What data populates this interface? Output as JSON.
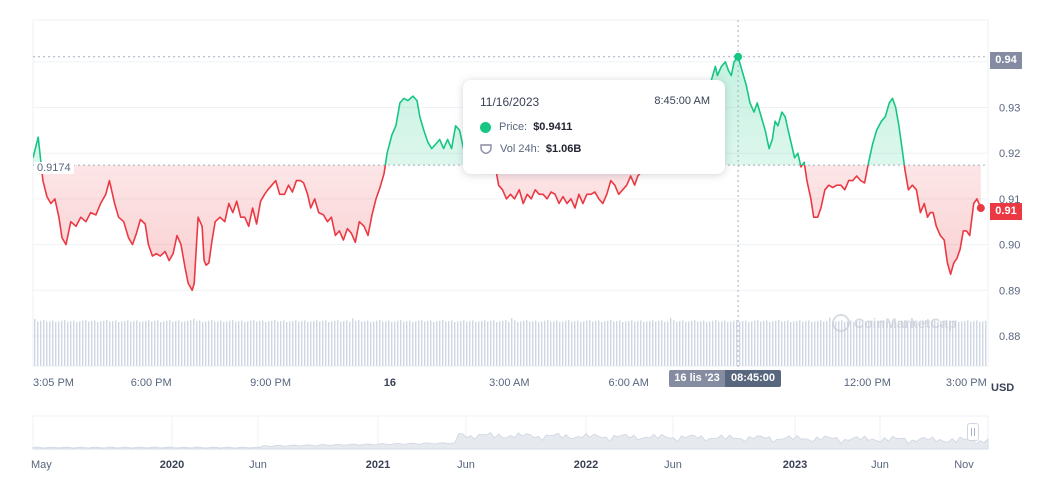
{
  "tooltip": {
    "date": "11/16/2023",
    "time": "8:45:00 AM",
    "price_label": "Price:",
    "price_value": "$0.9411",
    "volume_label": "Vol 24h:",
    "volume_value": "$1.06B"
  },
  "crosshair": {
    "price_tag": "0.94",
    "date_tag": "16 lis '23",
    "time_tag": "08:45:00"
  },
  "last_price_tag": "0.91",
  "open_price_label": "0.9174",
  "currency_label": "USD",
  "watermark_text": "CoinMarketCap",
  "colors": {
    "up": "#16c784",
    "down": "#ea3943",
    "grid": "#eff2f5",
    "volume": "#cfd6e4",
    "tag_gray": "#858ca2",
    "tag_dark": "#58667e"
  },
  "chart_data": {
    "type": "line",
    "baseline": 0.9174,
    "ylim": [
      0.875,
      0.945
    ],
    "yticks": [
      "0.88",
      "0.89",
      "0.90",
      "0.91",
      "0.92",
      "0.93",
      "0.94"
    ],
    "xticks": [
      {
        "label": "3:05 PM",
        "t": 0.05,
        "bold": false
      },
      {
        "label": "6:00 PM",
        "t": 2.97,
        "bold": false
      },
      {
        "label": "9:00 PM",
        "t": 5.97,
        "bold": false
      },
      {
        "label": "16",
        "t": 8.97,
        "bold": true
      },
      {
        "label": "3:00 AM",
        "t": 11.97,
        "bold": false
      },
      {
        "label": "6:00 AM",
        "t": 14.97,
        "bold": false
      },
      {
        "label": "12:00 PM",
        "t": 20.97,
        "bold": false
      },
      {
        "label": "3:00 PM",
        "t": 23.97,
        "bold": false
      }
    ],
    "hover": {
      "t": 17.72,
      "price": 0.9411
    },
    "price": [
      [
        0.0,
        0.919
      ],
      [
        0.13,
        0.9235
      ],
      [
        0.25,
        0.914
      ],
      [
        0.35,
        0.9105
      ],
      [
        0.45,
        0.909
      ],
      [
        0.55,
        0.91
      ],
      [
        0.65,
        0.906
      ],
      [
        0.73,
        0.9015
      ],
      [
        0.83,
        0.9
      ],
      [
        0.95,
        0.905
      ],
      [
        1.08,
        0.904
      ],
      [
        1.2,
        0.906
      ],
      [
        1.33,
        0.905
      ],
      [
        1.45,
        0.907
      ],
      [
        1.58,
        0.9065
      ],
      [
        1.7,
        0.909
      ],
      [
        1.83,
        0.911
      ],
      [
        1.92,
        0.914
      ],
      [
        2.05,
        0.909
      ],
      [
        2.15,
        0.906
      ],
      [
        2.28,
        0.905
      ],
      [
        2.4,
        0.9015
      ],
      [
        2.5,
        0.9
      ],
      [
        2.6,
        0.9025
      ],
      [
        2.7,
        0.9055
      ],
      [
        2.82,
        0.9045
      ],
      [
        2.9,
        0.9
      ],
      [
        3.0,
        0.8975
      ],
      [
        3.1,
        0.898
      ],
      [
        3.2,
        0.8975
      ],
      [
        3.32,
        0.8985
      ],
      [
        3.42,
        0.8965
      ],
      [
        3.52,
        0.898
      ],
      [
        3.62,
        0.902
      ],
      [
        3.72,
        0.9
      ],
      [
        3.82,
        0.895
      ],
      [
        3.9,
        0.8915
      ],
      [
        4.0,
        0.89
      ],
      [
        4.05,
        0.8915
      ],
      [
        4.15,
        0.906
      ],
      [
        4.25,
        0.904
      ],
      [
        4.3,
        0.8965
      ],
      [
        4.35,
        0.8955
      ],
      [
        4.42,
        0.896
      ],
      [
        4.5,
        0.901
      ],
      [
        4.58,
        0.905
      ],
      [
        4.7,
        0.906
      ],
      [
        4.82,
        0.905
      ],
      [
        4.92,
        0.909
      ],
      [
        5.02,
        0.907
      ],
      [
        5.12,
        0.9095
      ],
      [
        5.22,
        0.906
      ],
      [
        5.32,
        0.906
      ],
      [
        5.42,
        0.904
      ],
      [
        5.52,
        0.908
      ],
      [
        5.62,
        0.9045
      ],
      [
        5.72,
        0.9095
      ],
      [
        5.82,
        0.911
      ],
      [
        5.9,
        0.912
      ],
      [
        6.0,
        0.913
      ],
      [
        6.1,
        0.914
      ],
      [
        6.2,
        0.911
      ],
      [
        6.32,
        0.911
      ],
      [
        6.42,
        0.913
      ],
      [
        6.52,
        0.9115
      ],
      [
        6.62,
        0.914
      ],
      [
        6.72,
        0.914
      ],
      [
        6.8,
        0.9135
      ],
      [
        6.9,
        0.911
      ],
      [
        6.98,
        0.908
      ],
      [
        7.08,
        0.91
      ],
      [
        7.18,
        0.907
      ],
      [
        7.3,
        0.9065
      ],
      [
        7.4,
        0.905
      ],
      [
        7.5,
        0.906
      ],
      [
        7.6,
        0.902
      ],
      [
        7.7,
        0.903
      ],
      [
        7.8,
        0.901
      ],
      [
        7.9,
        0.9035
      ],
      [
        8.0,
        0.9025
      ],
      [
        8.1,
        0.9005
      ],
      [
        8.2,
        0.905
      ],
      [
        8.32,
        0.904
      ],
      [
        8.42,
        0.902
      ],
      [
        8.52,
        0.9065
      ],
      [
        8.62,
        0.91
      ],
      [
        8.72,
        0.9125
      ],
      [
        8.82,
        0.9155
      ],
      [
        8.9,
        0.92
      ],
      [
        9.02,
        0.924
      ],
      [
        9.12,
        0.926
      ],
      [
        9.22,
        0.931
      ],
      [
        9.32,
        0.932
      ],
      [
        9.42,
        0.9315
      ],
      [
        9.55,
        0.9325
      ],
      [
        9.65,
        0.9315
      ],
      [
        9.72,
        0.928
      ],
      [
        9.82,
        0.925
      ],
      [
        9.92,
        0.9225
      ],
      [
        10.02,
        0.921
      ],
      [
        10.12,
        0.922
      ],
      [
        10.22,
        0.923
      ],
      [
        10.32,
        0.921
      ],
      [
        10.42,
        0.923
      ],
      [
        10.52,
        0.921
      ],
      [
        10.62,
        0.926
      ],
      [
        10.72,
        0.925
      ],
      [
        10.82,
        0.921
      ],
      [
        10.92,
        0.922
      ],
      [
        11.02,
        0.9265
      ],
      [
        11.12,
        0.922
      ],
      [
        11.22,
        0.922
      ],
      [
        11.32,
        0.928
      ],
      [
        11.42,
        0.9225
      ],
      [
        11.52,
        0.924
      ],
      [
        11.6,
        0.918
      ],
      [
        11.7,
        0.913
      ],
      [
        11.8,
        0.912
      ],
      [
        11.9,
        0.91
      ],
      [
        12.0,
        0.911
      ],
      [
        12.1,
        0.91
      ],
      [
        12.22,
        0.912
      ],
      [
        12.32,
        0.909
      ],
      [
        12.42,
        0.911
      ],
      [
        12.52,
        0.91
      ],
      [
        12.62,
        0.912
      ],
      [
        12.72,
        0.911
      ],
      [
        12.82,
        0.911
      ],
      [
        12.92,
        0.91
      ],
      [
        13.02,
        0.9115
      ],
      [
        13.12,
        0.911
      ],
      [
        13.22,
        0.909
      ],
      [
        13.32,
        0.9105
      ],
      [
        13.42,
        0.909
      ],
      [
        13.52,
        0.91
      ],
      [
        13.62,
        0.908
      ],
      [
        13.72,
        0.911
      ],
      [
        13.82,
        0.909
      ],
      [
        13.92,
        0.911
      ],
      [
        14.02,
        0.911
      ],
      [
        14.12,
        0.9115
      ],
      [
        14.22,
        0.91
      ],
      [
        14.32,
        0.909
      ],
      [
        14.42,
        0.911
      ],
      [
        14.52,
        0.914
      ],
      [
        14.62,
        0.913
      ],
      [
        14.72,
        0.911
      ],
      [
        14.82,
        0.912
      ],
      [
        14.92,
        0.913
      ],
      [
        15.02,
        0.915
      ],
      [
        15.12,
        0.913
      ],
      [
        15.2,
        0.915
      ],
      [
        15.3,
        0.916
      ],
      [
        17.05,
        0.936
      ],
      [
        17.15,
        0.939
      ],
      [
        17.2,
        0.937
      ],
      [
        17.3,
        0.939
      ],
      [
        17.4,
        0.94
      ],
      [
        17.48,
        0.938
      ],
      [
        17.55,
        0.937
      ],
      [
        17.62,
        0.94
      ],
      [
        17.72,
        0.9411
      ],
      [
        17.82,
        0.938
      ],
      [
        17.92,
        0.935
      ],
      [
        18.02,
        0.931
      ],
      [
        18.12,
        0.929
      ],
      [
        18.2,
        0.931
      ],
      [
        18.3,
        0.928
      ],
      [
        18.4,
        0.925
      ],
      [
        18.5,
        0.921
      ],
      [
        18.58,
        0.923
      ],
      [
        18.65,
        0.927
      ],
      [
        18.72,
        0.926
      ],
      [
        18.82,
        0.929
      ],
      [
        18.9,
        0.928
      ],
      [
        18.98,
        0.925
      ],
      [
        19.06,
        0.922
      ],
      [
        19.14,
        0.919
      ],
      [
        19.22,
        0.92
      ],
      [
        19.3,
        0.917
      ],
      [
        19.38,
        0.918
      ],
      [
        19.45,
        0.914
      ],
      [
        19.55,
        0.91
      ],
      [
        19.62,
        0.906
      ],
      [
        19.72,
        0.906
      ],
      [
        19.8,
        0.908
      ],
      [
        19.9,
        0.912
      ],
      [
        20.0,
        0.913
      ],
      [
        20.1,
        0.9125
      ],
      [
        20.2,
        0.913
      ],
      [
        20.3,
        0.913
      ],
      [
        20.4,
        0.912
      ],
      [
        20.5,
        0.914
      ],
      [
        20.6,
        0.914
      ],
      [
        20.7,
        0.915
      ],
      [
        20.8,
        0.914
      ],
      [
        20.9,
        0.9135
      ],
      [
        21.0,
        0.918
      ],
      [
        21.1,
        0.922
      ],
      [
        21.2,
        0.925
      ],
      [
        21.32,
        0.927
      ],
      [
        21.42,
        0.928
      ],
      [
        21.52,
        0.931
      ],
      [
        21.6,
        0.932
      ],
      [
        21.68,
        0.93
      ],
      [
        21.76,
        0.926
      ],
      [
        21.84,
        0.921
      ],
      [
        21.92,
        0.916
      ],
      [
        22.0,
        0.912
      ],
      [
        22.1,
        0.913
      ],
      [
        22.2,
        0.912
      ],
      [
        22.3,
        0.907
      ],
      [
        22.4,
        0.909
      ],
      [
        22.48,
        0.906
      ],
      [
        22.55,
        0.907
      ],
      [
        22.62,
        0.907
      ],
      [
        22.7,
        0.904
      ],
      [
        22.8,
        0.902
      ],
      [
        22.9,
        0.901
      ],
      [
        22.98,
        0.896
      ],
      [
        23.06,
        0.8935
      ],
      [
        23.14,
        0.896
      ],
      [
        23.22,
        0.897
      ],
      [
        23.3,
        0.899
      ],
      [
        23.38,
        0.903
      ],
      [
        23.46,
        0.903
      ],
      [
        23.54,
        0.902
      ],
      [
        23.64,
        0.909
      ],
      [
        23.72,
        0.91
      ],
      [
        23.82,
        0.908
      ]
    ],
    "last": {
      "t": 23.82,
      "price": 0.908
    },
    "overview": {
      "xticks": [
        {
          "label": "May",
          "bold": false
        },
        {
          "label": "2020",
          "bold": true
        },
        {
          "label": "Jun",
          "bold": false
        },
        {
          "label": "2021",
          "bold": true
        },
        {
          "label": "Jun",
          "bold": false
        },
        {
          "label": "2022",
          "bold": true
        },
        {
          "label": "Jun",
          "bold": false
        },
        {
          "label": "2023",
          "bold": true
        },
        {
          "label": "Jun",
          "bold": false
        },
        {
          "label": "Nov",
          "bold": false
        }
      ]
    }
  }
}
